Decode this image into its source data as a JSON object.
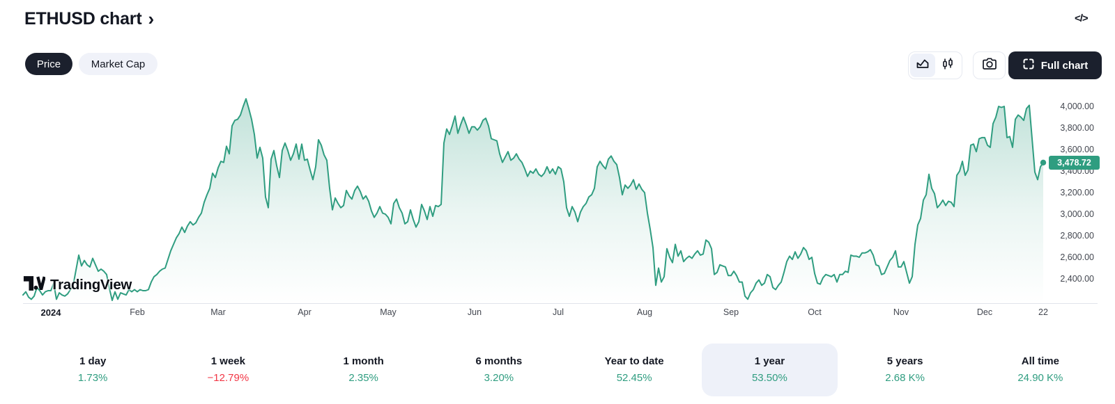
{
  "header": {
    "title": "ETHUSD chart",
    "chevron": "›",
    "code_icon_label": "</>"
  },
  "toolbar": {
    "price_tab": "Price",
    "market_cap_tab": "Market Cap",
    "full_chart_label": "Full chart"
  },
  "watermark": {
    "text": "TradingView"
  },
  "colors": {
    "accent_green": "#2f9d80",
    "negative_red": "#f23645",
    "dark_button_bg": "#1b202d",
    "light_pill_bg": "#f0f2f9",
    "highlight_bg": "#eef1f9"
  },
  "chart_data": {
    "type": "area",
    "symbol": "ETHUSD",
    "range_selected": "1 year",
    "grid": false,
    "ylim": [
      2174,
      4161
    ],
    "days_total": 366,
    "y_ticks": [
      {
        "label": "4,000.00",
        "price": 4000
      },
      {
        "label": "3,800.00",
        "price": 3800
      },
      {
        "label": "3,600.00",
        "price": 3600
      },
      {
        "label": "3,400.00",
        "price": 3400
      },
      {
        "label": "3,200.00",
        "price": 3200
      },
      {
        "label": "3,000.00",
        "price": 3000
      },
      {
        "label": "2,800.00",
        "price": 2800
      },
      {
        "label": "2,600.00",
        "price": 2600
      },
      {
        "label": "2,400.00",
        "price": 2400
      }
    ],
    "x_ticks": [
      {
        "label": "2024",
        "day": 10,
        "bold": true
      },
      {
        "label": "Feb",
        "day": 41
      },
      {
        "label": "Mar",
        "day": 70
      },
      {
        "label": "Apr",
        "day": 101
      },
      {
        "label": "May",
        "day": 131
      },
      {
        "label": "Jun",
        "day": 162
      },
      {
        "label": "Jul",
        "day": 192
      },
      {
        "label": "Aug",
        "day": 223
      },
      {
        "label": "Sep",
        "day": 254
      },
      {
        "label": "Oct",
        "day": 284
      },
      {
        "label": "Nov",
        "day": 315
      },
      {
        "label": "Dec",
        "day": 345
      },
      {
        "label": "22",
        "day": 366
      }
    ],
    "last_price": {
      "label": "3,478.72",
      "value": 3478.72
    },
    "series": {
      "name": "ETHUSD",
      "note_visible_span": "approx. one year of daily prices ending Dec 22",
      "prices": [
        2250,
        2280,
        2230,
        2210,
        2240,
        2320,
        2290,
        2250,
        2280,
        2290,
        2290,
        2360,
        2210,
        2270,
        2250,
        2240,
        2260,
        2300,
        2340,
        2480,
        2620,
        2520,
        2570,
        2530,
        2510,
        2590,
        2530,
        2470,
        2490,
        2470,
        2440,
        2310,
        2200,
        2280,
        2210,
        2270,
        2260,
        2250,
        2300,
        2280,
        2300,
        2280,
        2300,
        2290,
        2290,
        2300,
        2370,
        2420,
        2440,
        2470,
        2490,
        2500,
        2580,
        2660,
        2720,
        2780,
        2820,
        2880,
        2830,
        2890,
        2930,
        2900,
        2920,
        2970,
        3010,
        3110,
        3180,
        3240,
        3380,
        3340,
        3430,
        3490,
        3480,
        3630,
        3560,
        3820,
        3870,
        3880,
        3920,
        4000,
        4070,
        3980,
        3880,
        3740,
        3520,
        3620,
        3520,
        3160,
        3060,
        3510,
        3590,
        3450,
        3340,
        3590,
        3660,
        3590,
        3500,
        3560,
        3650,
        3510,
        3650,
        3500,
        3510,
        3410,
        3320,
        3440,
        3690,
        3640,
        3550,
        3500,
        3240,
        3040,
        3150,
        3100,
        3060,
        3080,
        3220,
        3170,
        3140,
        3220,
        3260,
        3210,
        3140,
        3170,
        3120,
        3030,
        2970,
        3010,
        3070,
        3010,
        3000,
        2970,
        2910,
        3100,
        3140,
        3060,
        3010,
        2910,
        2930,
        3040,
        2950,
        2880,
        2930,
        3090,
        3030,
        2950,
        3070,
        2980,
        3080,
        3070,
        3090,
        3660,
        3790,
        3740,
        3820,
        3910,
        3750,
        3830,
        3900,
        3830,
        3750,
        3810,
        3810,
        3780,
        3810,
        3870,
        3890,
        3820,
        3700,
        3690,
        3680,
        3560,
        3480,
        3530,
        3580,
        3500,
        3520,
        3560,
        3510,
        3480,
        3420,
        3350,
        3400,
        3380,
        3420,
        3370,
        3350,
        3380,
        3440,
        3380,
        3420,
        3370,
        3440,
        3420,
        3300,
        3060,
        2980,
        3070,
        3020,
        2930,
        3020,
        3070,
        3100,
        3160,
        3180,
        3240,
        3440,
        3490,
        3450,
        3420,
        3510,
        3540,
        3490,
        3460,
        3340,
        3180,
        3270,
        3240,
        3270,
        3320,
        3230,
        3280,
        3230,
        3200,
        3010,
        2860,
        2690,
        2340,
        2500,
        2370,
        2420,
        2680,
        2600,
        2550,
        2720,
        2610,
        2660,
        2560,
        2590,
        2610,
        2590,
        2630,
        2660,
        2620,
        2630,
        2760,
        2740,
        2680,
        2440,
        2460,
        2530,
        2520,
        2510,
        2430,
        2430,
        2470,
        2430,
        2370,
        2370,
        2240,
        2210,
        2270,
        2300,
        2360,
        2390,
        2340,
        2360,
        2440,
        2420,
        2320,
        2300,
        2340,
        2370,
        2460,
        2560,
        2610,
        2580,
        2650,
        2590,
        2630,
        2690,
        2660,
        2580,
        2600,
        2450,
        2360,
        2350,
        2410,
        2440,
        2430,
        2420,
        2440,
        2370,
        2440,
        2440,
        2470,
        2460,
        2620,
        2610,
        2610,
        2600,
        2640,
        2640,
        2650,
        2670,
        2620,
        2530,
        2520,
        2440,
        2450,
        2510,
        2570,
        2600,
        2660,
        2510,
        2510,
        2560,
        2460,
        2360,
        2420,
        2720,
        2900,
        2960,
        3130,
        3180,
        3370,
        3240,
        3190,
        3060,
        3090,
        3130,
        3080,
        3120,
        3110,
        3070,
        3360,
        3400,
        3490,
        3360,
        3410,
        3640,
        3650,
        3580,
        3700,
        3710,
        3710,
        3640,
        3620,
        3840,
        3900,
        4000,
        3990,
        4000,
        3710,
        3720,
        3620,
        3880,
        3920,
        3900,
        3870,
        3980,
        4010,
        3700,
        3390,
        3320,
        3440,
        3478.72
      ]
    }
  },
  "stats": [
    {
      "label": "1 day",
      "value": "1.73%",
      "direction": "up",
      "highlighted": false
    },
    {
      "label": "1 week",
      "value": "−12.79%",
      "direction": "down",
      "highlighted": false
    },
    {
      "label": "1 month",
      "value": "2.35%",
      "direction": "up",
      "highlighted": false
    },
    {
      "label": "6 months",
      "value": "3.20%",
      "direction": "up",
      "highlighted": false
    },
    {
      "label": "Year to date",
      "value": "52.45%",
      "direction": "up",
      "highlighted": false
    },
    {
      "label": "1 year",
      "value": "53.50%",
      "direction": "up",
      "highlighted": true
    },
    {
      "label": "5 years",
      "value": "2.68 K%",
      "direction": "up",
      "highlighted": false
    },
    {
      "label": "All time",
      "value": "24.90 K%",
      "direction": "up",
      "highlighted": false
    }
  ]
}
